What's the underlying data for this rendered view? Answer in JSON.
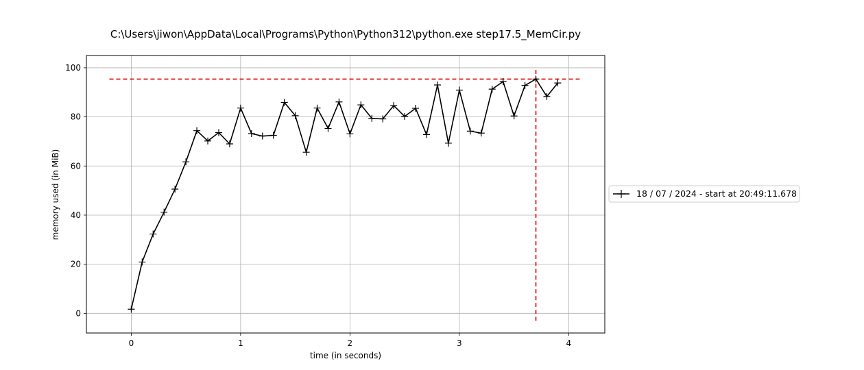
{
  "window_title": "C:\\Users\\jiwon\\AppData\\Local\\Programs\\Python\\Python312\\python.exe step17.5_MemCir.py",
  "chart_data": {
    "type": "line",
    "title": "C:\\Users\\jiwon\\AppData\\Local\\Programs\\Python\\Python312\\python.exe step17.5_MemCir.py",
    "xlabel": "time (in seconds)",
    "ylabel": "memory used (in MiB)",
    "xlim": [
      -0.41,
      4.33
    ],
    "ylim": [
      -8,
      105
    ],
    "xticks": [
      0,
      1,
      2,
      3,
      4
    ],
    "yticks": [
      0,
      20,
      40,
      60,
      80,
      100
    ],
    "grid": true,
    "legend_placement": "right, outside plot area",
    "series": [
      {
        "name": "18 / 07 / 2024 - start at 20:49:11.678",
        "color": "#000000",
        "marker": "+",
        "x": [
          0.0,
          0.1,
          0.2,
          0.3,
          0.4,
          0.5,
          0.6,
          0.7,
          0.8,
          0.9,
          1.0,
          1.1,
          1.2,
          1.3,
          1.4,
          1.5,
          1.6,
          1.7,
          1.8,
          1.9,
          2.0,
          2.1,
          2.2,
          2.3,
          2.4,
          2.5,
          2.6,
          2.7,
          2.8,
          2.9,
          3.0,
          3.1,
          3.2,
          3.3,
          3.4,
          3.5,
          3.6,
          3.7,
          3.8,
          3.9
        ],
        "y": [
          1.7,
          20.9,
          32.3,
          41.2,
          50.6,
          61.7,
          74.4,
          70.2,
          73.6,
          69.0,
          83.6,
          73.2,
          72.2,
          72.5,
          85.9,
          80.5,
          65.6,
          83.6,
          75.3,
          86.1,
          73.1,
          84.9,
          79.4,
          79.2,
          84.6,
          80.2,
          83.5,
          72.8,
          93.0,
          69.3,
          90.9,
          74.2,
          73.4,
          91.3,
          94.4,
          80.4,
          92.8,
          95.4,
          88.3,
          93.8
        ]
      }
    ],
    "annotations": [
      {
        "kind": "hline",
        "y": 95.4,
        "xrange": [
          -0.2,
          4.1
        ],
        "color": "#e00000",
        "style": "dashed"
      },
      {
        "kind": "vline",
        "x": 3.7,
        "yrange": [
          -3,
          100
        ],
        "color": "#e00000",
        "style": "dashed"
      }
    ]
  }
}
